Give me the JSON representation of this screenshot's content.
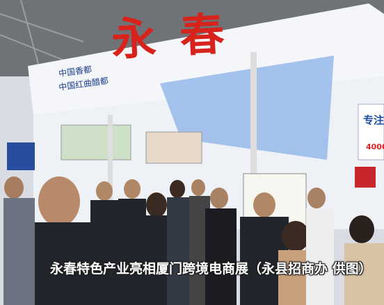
{
  "sign": {
    "title": "永 春",
    "lines": [
      "中国香都",
      "中国红曲醋都"
    ]
  },
  "side_panel": {
    "text": "专注",
    "number": "4000"
  },
  "caption": "永春特色产业亮相厦门跨境电商展（永县招商办 供图）"
}
